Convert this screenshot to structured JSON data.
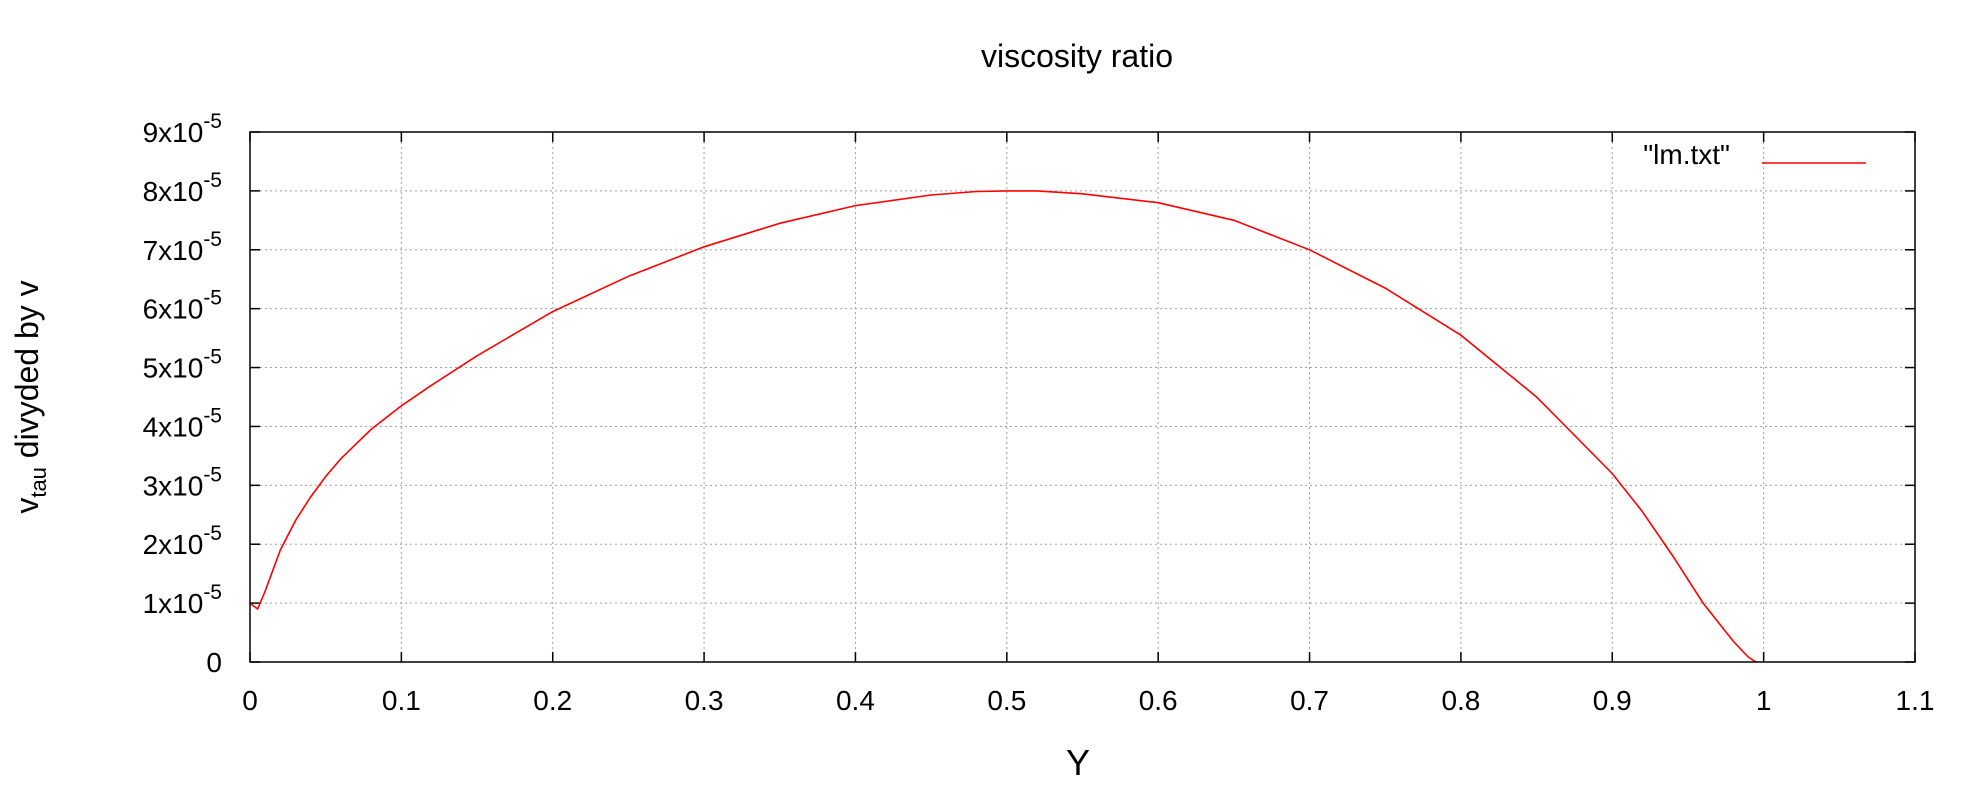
{
  "chart_data": {
    "type": "line",
    "title": "viscosity ratio",
    "xlabel": "Y",
    "ylabel": {
      "main": "v",
      "sub": "tau",
      "rest": " divyded by v"
    },
    "xlim": [
      0,
      1.1
    ],
    "ylim": [
      0,
      9e-05
    ],
    "x_ticks": [
      {
        "value": 0,
        "label": "0"
      },
      {
        "value": 0.1,
        "label": "0.1"
      },
      {
        "value": 0.2,
        "label": "0.2"
      },
      {
        "value": 0.3,
        "label": "0.3"
      },
      {
        "value": 0.4,
        "label": "0.4"
      },
      {
        "value": 0.5,
        "label": "0.5"
      },
      {
        "value": 0.6,
        "label": "0.6"
      },
      {
        "value": 0.7,
        "label": "0.7"
      },
      {
        "value": 0.8,
        "label": "0.8"
      },
      {
        "value": 0.9,
        "label": "0.9"
      },
      {
        "value": 1.0,
        "label": "1"
      },
      {
        "value": 1.1,
        "label": "1.1"
      }
    ],
    "y_ticks": [
      {
        "value": 0,
        "label": "0",
        "mant": "0",
        "exp": ""
      },
      {
        "value": 1e-05,
        "label": "1x10-5",
        "mant": "1x10",
        "exp": "-5"
      },
      {
        "value": 2e-05,
        "label": "2x10-5",
        "mant": "2x10",
        "exp": "-5"
      },
      {
        "value": 3e-05,
        "label": "3x10-5",
        "mant": "3x10",
        "exp": "-5"
      },
      {
        "value": 4e-05,
        "label": "4x10-5",
        "mant": "4x10",
        "exp": "-5"
      },
      {
        "value": 5e-05,
        "label": "5x10-5",
        "mant": "5x10",
        "exp": "-5"
      },
      {
        "value": 6e-05,
        "label": "6x10-5",
        "mant": "6x10",
        "exp": "-5"
      },
      {
        "value": 7e-05,
        "label": "7x10-5",
        "mant": "7x10",
        "exp": "-5"
      },
      {
        "value": 8e-05,
        "label": "8x10-5",
        "mant": "8x10",
        "exp": "-5"
      },
      {
        "value": 9e-05,
        "label": "9x10-5",
        "mant": "9x10",
        "exp": "-5"
      }
    ],
    "grid": true,
    "legend_position": "top-right",
    "series": [
      {
        "name": "\"lm.txt\"",
        "color": "#ff0000",
        "x": [
          0.0,
          0.005,
          0.01,
          0.015,
          0.02,
          0.03,
          0.04,
          0.05,
          0.06,
          0.08,
          0.1,
          0.12,
          0.15,
          0.2,
          0.25,
          0.3,
          0.35,
          0.4,
          0.45,
          0.48,
          0.5,
          0.52,
          0.55,
          0.6,
          0.65,
          0.7,
          0.75,
          0.8,
          0.85,
          0.9,
          0.92,
          0.94,
          0.96,
          0.98,
          0.99,
          0.995
        ],
        "y": [
          1e-05,
          9e-06,
          1.2e-05,
          1.55e-05,
          1.9e-05,
          2.4e-05,
          2.8e-05,
          3.15e-05,
          3.45e-05,
          3.95e-05,
          4.35e-05,
          4.7e-05,
          5.2e-05,
          5.95e-05,
          6.55e-05,
          7.05e-05,
          7.45e-05,
          7.75e-05,
          7.93e-05,
          7.99e-05,
          8e-05,
          8e-05,
          7.95e-05,
          7.8e-05,
          7.5e-05,
          7e-05,
          6.35e-05,
          5.55e-05,
          4.5e-05,
          3.2e-05,
          2.55e-05,
          1.8e-05,
          1e-05,
          3.5e-06,
          8e-07,
          0.0
        ]
      }
    ]
  }
}
